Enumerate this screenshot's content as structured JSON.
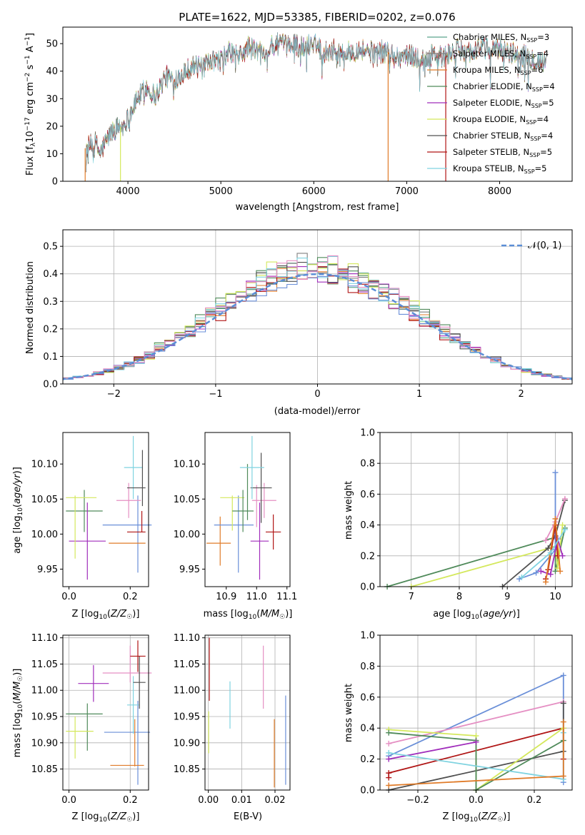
{
  "figure_title": "PLATE=1622, MJD=53385, FIBERID=0202, z=0.076",
  "colors": {
    "chabrier_miles": "#5aa58c",
    "salpeter_miles": "#808080",
    "kroupa_miles": "#e07b28",
    "chabrier_elodie": "#4f8a5a",
    "salpeter_elodie": "#a02dbb",
    "kroupa_elodie": "#d4e85c",
    "chabrier_stelib": "#505050",
    "salpeter_stelib": "#b01515",
    "kroupa_stelib": "#7fd3e0",
    "blue": "#6a8fd8",
    "pink": "#e58fc3",
    "gauss": "#5b8ed6"
  },
  "chart_data": [
    {
      "id": "spectrum",
      "type": "line",
      "xlabel": "wavelength [Angstrom, rest frame]",
      "ylabel": "Flux [f_λ 10^-17 erg cm^-2 s^-1 A^-1]",
      "xlim": [
        3300,
        8780
      ],
      "ylim": [
        0,
        56
      ],
      "xticks": [
        4000,
        5000,
        6000,
        7000,
        8000
      ],
      "yticks": [
        0,
        10,
        20,
        30,
        40,
        50
      ],
      "legend_position": "upper-right",
      "series": [
        {
          "name": "Chabrier MILES, N_SSP=3",
          "color_key": "chabrier_miles"
        },
        {
          "name": "Salpeter MILES, N_SSP=4",
          "color_key": "salpeter_miles"
        },
        {
          "name": "Kroupa MILES, N_SSP=6",
          "color_key": "kroupa_miles"
        },
        {
          "name": "Chabrier ELODIE, N_SSP=4",
          "color_key": "chabrier_elodie"
        },
        {
          "name": "Salpeter ELODIE, N_SSP=5",
          "color_key": "salpeter_elodie"
        },
        {
          "name": "Kroupa ELODIE, N_SSP=4",
          "color_key": "kroupa_elodie"
        },
        {
          "name": "Chabrier STELIB, N_SSP=4",
          "color_key": "chabrier_stelib"
        },
        {
          "name": "Salpeter STELIB, N_SSP=5",
          "color_key": "salpeter_stelib"
        },
        {
          "name": "Kroupa STELIB, N_SSP=5",
          "color_key": "kroupa_stelib"
        }
      ],
      "continuum": {
        "x": [
          3550,
          3650,
          3700,
          3800,
          3850,
          3950,
          4000,
          4100,
          4200,
          4300,
          4400,
          4500,
          4600,
          4700,
          4800,
          4900,
          5000,
          5100,
          5200,
          5300,
          5400,
          5500,
          5600,
          5700,
          5800,
          5900,
          6000,
          6100,
          6200,
          6300,
          6400,
          6500,
          6600,
          6700,
          6800,
          6900,
          7000,
          7100,
          7200,
          7300,
          7400,
          7500,
          7600,
          7700,
          7800,
          7900,
          8000,
          8100,
          8200,
          8300,
          8400,
          8500
        ],
        "y": [
          12,
          14,
          10,
          17,
          19,
          20,
          23,
          30,
          34,
          31,
          38,
          37,
          40,
          42,
          41,
          43,
          44,
          47,
          45,
          49,
          47,
          48,
          50,
          49,
          50,
          48,
          51,
          47,
          48,
          46,
          47,
          48,
          47,
          47,
          47,
          45,
          46,
          45,
          44,
          46,
          45,
          47,
          48,
          47,
          49,
          47,
          48,
          47,
          46,
          45,
          44,
          43
        ]
      },
      "dropouts": [
        {
          "x": 3540,
          "color_key": "kroupa_miles"
        },
        {
          "x": 3920,
          "color_key": "kroupa_elodie"
        },
        {
          "x": 6800,
          "color_key": "kroupa_miles"
        },
        {
          "x": 7420,
          "color_key": "salpeter_stelib"
        }
      ]
    },
    {
      "id": "residuals",
      "type": "histogram",
      "xlabel": "(data-model)/error",
      "ylabel": "Normed distribution",
      "xlim": [
        -2.5,
        2.5
      ],
      "ylim": [
        0,
        0.56
      ],
      "xticks": [
        -2,
        -1,
        0,
        1,
        2
      ],
      "yticks": [
        0,
        0.1,
        0.2,
        0.3,
        0.4,
        0.5
      ],
      "grid": true,
      "legend_position": "upper-right",
      "gaussian_label": "𝒩(0, 1)",
      "bin_width": 0.1
    },
    {
      "id": "age_vs_Z",
      "type": "errorbar",
      "xlabel": "Z [log10(Z/Z☉)]",
      "ylabel": "age [log10(age/yr)]",
      "xlim": [
        -0.02,
        0.26
      ],
      "ylim": [
        9.925,
        10.145
      ],
      "xticks": [
        0.0,
        0.2
      ],
      "yticks": [
        9.95,
        10.0,
        10.05,
        10.1
      ],
      "points": [
        {
          "x": 0.05,
          "xerr": 0.06,
          "y": 10.033,
          "yerr": 0.03,
          "color_key": "chabrier_elodie"
        },
        {
          "x": 0.06,
          "xerr": 0.06,
          "y": 9.99,
          "yerr": 0.055,
          "color_key": "salpeter_elodie"
        },
        {
          "x": 0.04,
          "xerr": 0.05,
          "y": 10.052,
          "yerr": 0.0,
          "color_key": "kroupa_elodie"
        },
        {
          "x": 0.02,
          "xerr": 0.0,
          "y": 10.01,
          "yerr": 0.045,
          "color_key": "kroupa_elodie"
        },
        {
          "x": 0.19,
          "xerr": 0.08,
          "y": 10.013,
          "yerr": 0.0,
          "color_key": "blue"
        },
        {
          "x": 0.225,
          "xerr": 0.0,
          "y": 10.0,
          "yerr": 0.055,
          "color_key": "blue"
        },
        {
          "x": 0.19,
          "xerr": 0.06,
          "y": 9.987,
          "yerr": 0.0,
          "color_key": "kroupa_miles"
        },
        {
          "x": 0.195,
          "xerr": 0.04,
          "y": 10.048,
          "yerr": 0.025,
          "color_key": "pink"
        },
        {
          "x": 0.21,
          "xerr": 0.03,
          "y": 10.095,
          "yerr": 0.045,
          "color_key": "kroupa_stelib"
        },
        {
          "x": 0.22,
          "xerr": 0.03,
          "y": 10.066,
          "yerr": 0.0,
          "color_key": "chabrier_stelib"
        },
        {
          "x": 0.24,
          "xerr": 0.0,
          "y": 10.08,
          "yerr": 0.04,
          "color_key": "chabrier_stelib"
        },
        {
          "x": 0.22,
          "xerr": 0.03,
          "y": 10.003,
          "yerr": 0.0,
          "color_key": "salpeter_stelib"
        },
        {
          "x": 0.238,
          "xerr": 0.0,
          "y": 10.018,
          "yerr": 0.015,
          "color_key": "salpeter_stelib"
        }
      ]
    },
    {
      "id": "age_vs_mass",
      "type": "errorbar",
      "xlabel": "mass [log10(M/M☉)]",
      "ylabel": "",
      "xlim": [
        10.83,
        11.11
      ],
      "ylim": [
        9.925,
        10.145
      ],
      "xticks": [
        10.9,
        11.0,
        11.1
      ],
      "yticks": [
        9.95,
        10.0,
        10.05,
        10.1
      ],
      "points": [
        {
          "x": 10.88,
          "xerr": 0.0,
          "y": 9.99,
          "yerr": 0.035,
          "color_key": "kroupa_miles"
        },
        {
          "x": 10.875,
          "xerr": 0.04,
          "y": 9.987,
          "yerr": 0.0,
          "color_key": "kroupa_miles"
        },
        {
          "x": 10.925,
          "xerr": 0.065,
          "y": 10.013,
          "yerr": 0.0,
          "color_key": "blue"
        },
        {
          "x": 10.94,
          "xerr": 0.0,
          "y": 10.0,
          "yerr": 0.055,
          "color_key": "blue"
        },
        {
          "x": 10.92,
          "xerr": 0.04,
          "y": 10.052,
          "yerr": 0.0,
          "color_key": "kroupa_elodie"
        },
        {
          "x": 10.92,
          "xerr": 0.0,
          "y": 10.03,
          "yerr": 0.025,
          "color_key": "kroupa_elodie"
        },
        {
          "x": 10.955,
          "xerr": 0.035,
          "y": 10.033,
          "yerr": 0.03,
          "color_key": "chabrier_elodie"
        },
        {
          "x": 10.97,
          "xerr": 0.0,
          "y": 10.06,
          "yerr": 0.04,
          "color_key": "chabrier_elodie"
        },
        {
          "x": 11.01,
          "xerr": 0.03,
          "y": 9.99,
          "yerr": 0.055,
          "color_key": "salpeter_elodie"
        },
        {
          "x": 11.025,
          "xerr": 0.04,
          "y": 10.048,
          "yerr": 0.025,
          "color_key": "pink"
        },
        {
          "x": 11.0,
          "xerr": 0.0,
          "y": 10.04,
          "yerr": 0.03,
          "color_key": "pink"
        },
        {
          "x": 11.015,
          "xerr": 0.035,
          "y": 10.066,
          "yerr": 0.05,
          "color_key": "chabrier_stelib"
        },
        {
          "x": 10.985,
          "xerr": 0.04,
          "y": 10.095,
          "yerr": 0.045,
          "color_key": "kroupa_stelib"
        },
        {
          "x": 11.055,
          "xerr": 0.025,
          "y": 10.003,
          "yerr": 0.025,
          "color_key": "salpeter_stelib"
        }
      ]
    },
    {
      "id": "weights_vs_age",
      "type": "line",
      "xlabel": "age [log10(age/yr)]",
      "ylabel": "mass weight",
      "xlim": [
        6.35,
        10.35
      ],
      "ylim": [
        0,
        1.0
      ],
      "xticks": [
        7,
        8,
        9,
        10
      ],
      "yticks": [
        0.0,
        0.2,
        0.4,
        0.6,
        0.8,
        1.0
      ],
      "grid": true,
      "series": [
        {
          "color_key": "chabrier_elodie",
          "x": [
            6.5,
            10.0,
            10.0,
            10.2
          ],
          "y": [
            0.0,
            0.32,
            0.1,
            0.38
          ]
        },
        {
          "color_key": "kroupa_elodie",
          "x": [
            7.0,
            10.0,
            10.05,
            10.15
          ],
          "y": [
            0.0,
            0.26,
            0.12,
            0.4
          ]
        },
        {
          "color_key": "chabrier_stelib",
          "x": [
            8.9,
            9.85,
            10.0,
            10.2
          ],
          "y": [
            0.0,
            0.25,
            0.33,
            0.56
          ]
        },
        {
          "color_key": "blue",
          "x": [
            9.25,
            9.6,
            10.0,
            10.0
          ],
          "y": [
            0.05,
            0.09,
            0.24,
            0.74
          ]
        },
        {
          "color_key": "salpeter_stelib",
          "x": [
            9.8,
            9.85,
            10.0,
            10.05
          ],
          "y": [
            0.05,
            0.11,
            0.4,
            0.2
          ]
        },
        {
          "color_key": "salpeter_elodie",
          "x": [
            9.7,
            9.9,
            10.05,
            10.15
          ],
          "y": [
            0.1,
            0.08,
            0.31,
            0.2
          ]
        },
        {
          "color_key": "pink",
          "x": [
            9.8,
            10.0,
            10.2
          ],
          "y": [
            0.3,
            0.42,
            0.57
          ]
        },
        {
          "color_key": "kroupa_miles",
          "x": [
            9.8,
            10.0,
            10.1
          ],
          "y": [
            0.03,
            0.44,
            0.1
          ]
        },
        {
          "color_key": "kroupa_stelib",
          "x": [
            9.3,
            9.9,
            10.2
          ],
          "y": [
            0.06,
            0.22,
            0.37
          ]
        }
      ]
    },
    {
      "id": "mass_vs_Z",
      "type": "errorbar",
      "xlabel": "Z [log10(Z/Z☉)]",
      "ylabel": "mass [log10(M/M☉)]",
      "xlim": [
        -0.02,
        0.26
      ],
      "ylim": [
        10.81,
        11.105
      ],
      "xticks": [
        0.0,
        0.2
      ],
      "yticks": [
        10.85,
        10.9,
        10.95,
        11.0,
        11.05,
        11.1
      ],
      "grid": true,
      "points": [
        {
          "x": 0.05,
          "xerr": 0.06,
          "y": 10.955,
          "yerr": 0.0,
          "color_key": "chabrier_elodie"
        },
        {
          "x": 0.06,
          "xerr": 0.0,
          "y": 10.93,
          "yerr": 0.045,
          "color_key": "chabrier_elodie"
        },
        {
          "x": 0.08,
          "xerr": 0.05,
          "y": 11.013,
          "yerr": 0.035,
          "color_key": "salpeter_elodie"
        },
        {
          "x": 0.035,
          "xerr": 0.045,
          "y": 10.922,
          "yerr": 0.0,
          "color_key": "kroupa_elodie"
        },
        {
          "x": 0.02,
          "xerr": 0.0,
          "y": 10.91,
          "yerr": 0.04,
          "color_key": "kroupa_elodie"
        },
        {
          "x": 0.19,
          "xerr": 0.075,
          "y": 10.92,
          "yerr": 0.0,
          "color_key": "blue"
        },
        {
          "x": 0.225,
          "xerr": 0.0,
          "y": 10.9,
          "yerr": 0.08,
          "color_key": "blue"
        },
        {
          "x": 0.19,
          "xerr": 0.055,
          "y": 10.857,
          "yerr": 0.0,
          "color_key": "kroupa_miles"
        },
        {
          "x": 0.215,
          "xerr": 0.0,
          "y": 10.9,
          "yerr": 0.045,
          "color_key": "kroupa_miles"
        },
        {
          "x": 0.19,
          "xerr": 0.08,
          "y": 11.033,
          "yerr": 0.0,
          "color_key": "pink"
        },
        {
          "x": 0.2,
          "xerr": 0.0,
          "y": 11.05,
          "yerr": 0.035,
          "color_key": "pink"
        },
        {
          "x": 0.21,
          "xerr": 0.02,
          "y": 10.972,
          "yerr": 0.055,
          "color_key": "kroupa_stelib"
        },
        {
          "x": 0.23,
          "xerr": 0.02,
          "y": 11.015,
          "yerr": 0.05,
          "color_key": "chabrier_stelib"
        },
        {
          "x": 0.225,
          "xerr": 0.025,
          "y": 11.065,
          "yerr": 0.03,
          "color_key": "salpeter_stelib"
        }
      ]
    },
    {
      "id": "mass_vs_EBV",
      "type": "errorbar",
      "xlabel": "E(B-V)",
      "ylabel": "",
      "xlim": [
        -0.001,
        0.0245
      ],
      "ylim": [
        10.81,
        11.105
      ],
      "xticks": [
        0.0,
        0.01,
        0.02
      ],
      "yticks": [
        10.85,
        10.9,
        10.95,
        11.0,
        11.05,
        11.1
      ],
      "grid": true,
      "points": [
        {
          "x": 0.0003,
          "xerr": 0.0,
          "y": 11.04,
          "yerr": 0.06,
          "color_key": "salpeter_stelib"
        },
        {
          "x": 0.0001,
          "xerr": 0.0,
          "y": 10.92,
          "yerr": 0.04,
          "color_key": "kroupa_elodie"
        },
        {
          "x": 0.0065,
          "xerr": 0.0,
          "y": 10.972,
          "yerr": 0.045,
          "color_key": "kroupa_stelib"
        },
        {
          "x": 0.0165,
          "xerr": 0.0,
          "y": 11.025,
          "yerr": 0.06,
          "color_key": "pink"
        },
        {
          "x": 0.0198,
          "xerr": 0.0,
          "y": 10.88,
          "yerr": 0.065,
          "color_key": "kroupa_miles"
        },
        {
          "x": 0.0232,
          "xerr": 0.0,
          "y": 10.905,
          "yerr": 0.085,
          "color_key": "blue"
        }
      ]
    },
    {
      "id": "weights_vs_Z",
      "type": "line",
      "xlabel": "Z [log10(Z/Z☉)]",
      "ylabel": "mass weight",
      "xlim": [
        -0.33,
        0.33
      ],
      "ylim": [
        0,
        1.0
      ],
      "xticks": [
        -0.2,
        0.0,
        0.2
      ],
      "yticks": [
        0.0,
        0.2,
        0.4,
        0.6,
        0.8,
        1.0
      ],
      "grid": true,
      "series": [
        {
          "color_key": "blue",
          "x": [
            -0.3,
            0.3,
            0.3
          ],
          "y": [
            0.22,
            0.74,
            0.05
          ]
        },
        {
          "color_key": "pink",
          "x": [
            -0.3,
            0.3
          ],
          "y": [
            0.3,
            0.57
          ]
        },
        {
          "color_key": "salpeter_stelib",
          "x": [
            -0.3,
            -0.3,
            0.3,
            0.3
          ],
          "y": [
            0.08,
            0.11,
            0.4,
            0.2
          ]
        },
        {
          "color_key": "chabrier_stelib",
          "x": [
            -0.3,
            0.3,
            0.3
          ],
          "y": [
            0.0,
            0.25,
            0.56
          ]
        },
        {
          "color_key": "kroupa_elodie",
          "x": [
            -0.3,
            0.0,
            0.0,
            0.3
          ],
          "y": [
            0.39,
            0.35,
            0.0,
            0.4
          ]
        },
        {
          "color_key": "chabrier_elodie",
          "x": [
            -0.3,
            0.0,
            0.0,
            0.3
          ],
          "y": [
            0.37,
            0.32,
            0.0,
            0.32
          ]
        },
        {
          "color_key": "salpeter_elodie",
          "x": [
            -0.3,
            0.0
          ],
          "y": [
            0.2,
            0.31
          ]
        },
        {
          "color_key": "kroupa_stelib",
          "x": [
            -0.3,
            0.3,
            0.3
          ],
          "y": [
            0.24,
            0.07,
            0.37
          ]
        },
        {
          "color_key": "kroupa_miles",
          "x": [
            -0.3,
            0.3,
            0.3
          ],
          "y": [
            0.03,
            0.09,
            0.44
          ]
        }
      ]
    }
  ]
}
